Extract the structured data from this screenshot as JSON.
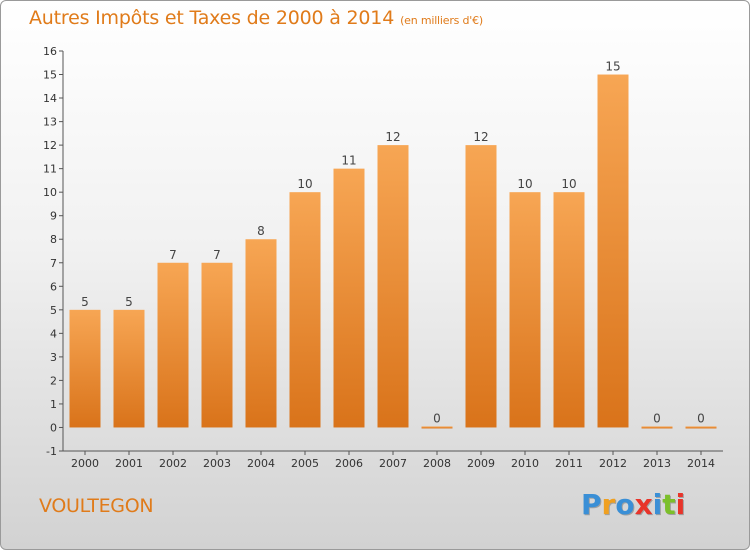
{
  "header": {
    "title": "Autres Impôts et Taxes de 2000 à 2014",
    "unit_note": "(en milliers d'€)"
  },
  "commune": "VOULTEGON",
  "logo": {
    "letters": [
      "P",
      "r",
      "o",
      "x",
      "i",
      "t",
      "i"
    ],
    "colors": [
      "#3a8fd6",
      "#f0a020",
      "#3a8fd6",
      "#e8342a",
      "#3a8fd6",
      "#7cbf2a",
      "#e8342a"
    ]
  },
  "colors": {
    "bar_top": "#f7a654",
    "bar_bottom": "#d9731a",
    "accent": "#e07b1a"
  },
  "chart_data": {
    "type": "bar",
    "title": "Autres Impôts et Taxes de 2000 à 2014",
    "subtitle": "(en milliers d'€)",
    "categories": [
      "2000",
      "2001",
      "2002",
      "2003",
      "2004",
      "2005",
      "2006",
      "2007",
      "2008",
      "2009",
      "2010",
      "2011",
      "2012",
      "2013",
      "2014"
    ],
    "values": [
      5,
      5,
      7,
      7,
      8,
      10,
      11,
      12,
      0,
      12,
      10,
      10,
      15,
      0,
      0
    ],
    "data_labels": [
      "5",
      "5",
      "7",
      "7",
      "8",
      "10",
      "11",
      "12",
      "0",
      "12",
      "10",
      "10",
      "15",
      "0",
      "0"
    ],
    "yticks": [
      -1,
      0,
      1,
      2,
      3,
      4,
      5,
      6,
      7,
      8,
      9,
      10,
      11,
      12,
      13,
      14,
      15,
      16
    ],
    "ylim": [
      -1,
      16
    ],
    "xlabel": "",
    "ylabel": "",
    "grid": false
  }
}
